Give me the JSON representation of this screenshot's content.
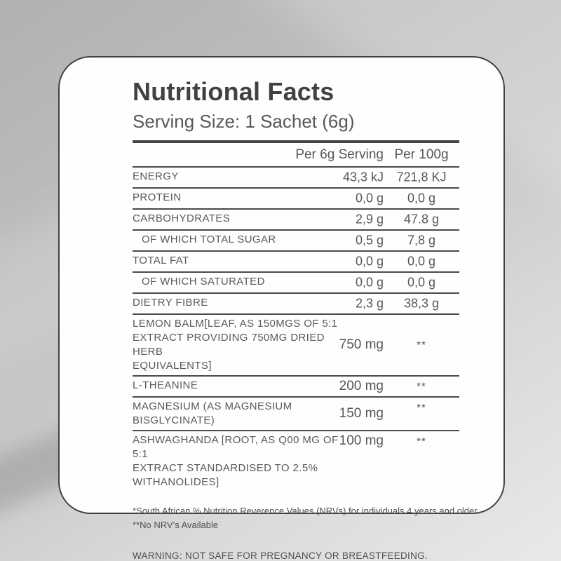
{
  "card": {
    "title": "Nutritional Facts",
    "serving_size": "Serving Size: 1 Sachet (6g)",
    "table": {
      "headers": {
        "per_serving": "Per 6g Serving",
        "per_100g": "Per 100g"
      },
      "rows": [
        {
          "label": "ENERGY",
          "per_serving": "43,3 kJ",
          "per_100g": "721,8 KJ"
        },
        {
          "label": "PROTEIN",
          "per_serving": "0,0 g",
          "per_100g": "0,0 g"
        },
        {
          "label": "CARBOHYDRATES",
          "per_serving": "2,9 g",
          "per_100g": "47.8  g"
        },
        {
          "label": "OF WHICH TOTAL SUGAR",
          "per_serving": "0,5 g",
          "per_100g": "7,8 g"
        },
        {
          "label": "TOTAL FAT",
          "per_serving": "0,0 g",
          "per_100g": "0,0 g"
        },
        {
          "label": "OF WHICH SATURATED",
          "per_serving": "0,0 g",
          "per_100g": "0,0 g"
        },
        {
          "label": "DIETRY FIBRE",
          "per_serving": "2,3 g",
          "per_100g": "38,3 g"
        },
        {
          "label": "LEMON BALM[LEAF, AS 150MGS OF 5:1\nEXTRACT PROVIDING 750MG DRIED HERB\nEQUIVALENTS]",
          "per_serving": "750 mg",
          "per_100g": "**"
        },
        {
          "label": "L-THEANINE",
          "per_serving": "200 mg",
          "per_100g": "**"
        },
        {
          "label": "MAGNESIUM (AS MAGNESIUM\nBISGLYCINATE)",
          "per_serving": "150 mg",
          "per_100g": "**"
        },
        {
          "label": "ASHWAGHANDA [ROOT, AS Q00 MG OF 5:1\nEXTRACT STANDARDISED TO 2.5%\nWITHANOLIDES]",
          "per_serving": "100 mg",
          "per_100g": "**"
        }
      ]
    },
    "footnotes": [
      "*South African % Nutrition Reverence Values (NRVs) for individuals 4 years and older.",
      "**No NRV’s Available"
    ],
    "warning": "WARNING: NOT SAFE FOR PREGNANCY OR BREASTFEEDING."
  },
  "colors": {
    "background": "#c4c4c6",
    "card_background": "#fefefe",
    "card_border": "#414042",
    "title_text": "#414042",
    "body_text": "#58595b",
    "rule": "#4a4a4c"
  }
}
